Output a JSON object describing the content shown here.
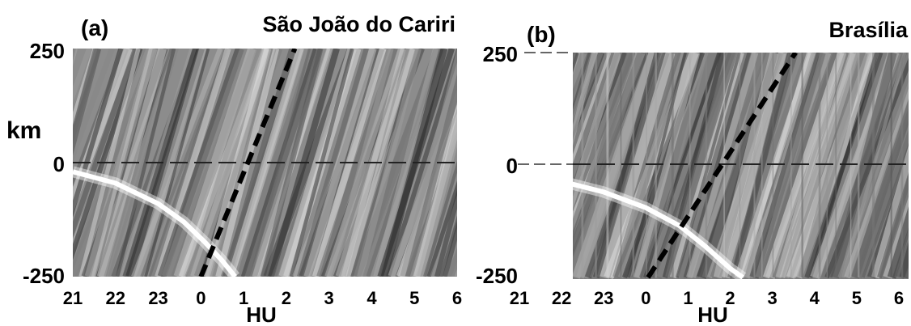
{
  "figure": {
    "background": "#ffffff",
    "axis_unit_label": "km",
    "panel_colors": {
      "keogram_light": "#e6e6e6",
      "keogram_dark": "#2a2a2a",
      "white_trace": "#ffffff",
      "dashed_line": "#000000"
    }
  },
  "chart_data": [
    {
      "type": "heatmap",
      "panel_label": "(a)",
      "title": "São João do Cariri",
      "xlabel": "HU",
      "ylabel": "km",
      "x_ticks": [
        "21",
        "22",
        "23",
        "0",
        "1",
        "2",
        "3",
        "4",
        "5",
        "6"
      ],
      "y_ticks": [
        "250",
        "0",
        "-250"
      ],
      "xlim": [
        21,
        30.2
      ],
      "ylim": [
        -250,
        250
      ],
      "grayscale": true,
      "data_start": 21,
      "reference_line": {
        "y": 0,
        "style": "dashed"
      },
      "bright_trace": {
        "description": "white curve",
        "points": [
          [
            21.0,
            -20
          ],
          [
            22.0,
            -45
          ],
          [
            23.0,
            -90
          ],
          [
            23.6,
            -130
          ],
          [
            24.1,
            -175
          ],
          [
            24.5,
            -215
          ],
          [
            24.8,
            -250
          ]
        ]
      },
      "phase_line": {
        "style": "thick dashed",
        "points": [
          [
            24.0,
            -250
          ],
          [
            26.2,
            250
          ]
        ]
      }
    },
    {
      "type": "heatmap",
      "panel_label": "(b)",
      "title": "Brasília",
      "xlabel": "HU",
      "ylabel": "",
      "x_ticks": [
        "21",
        "22",
        "23",
        "0",
        "1",
        "2",
        "3",
        "4",
        "5",
        "6"
      ],
      "y_ticks": [
        "250",
        "0",
        "-250"
      ],
      "xlim": [
        21,
        30.2
      ],
      "ylim": [
        -250,
        250
      ],
      "grayscale": true,
      "data_start": 22.15,
      "reference_line": {
        "y": 0,
        "style": "dashed"
      },
      "bright_trace": {
        "description": "white curve",
        "points": [
          [
            22.15,
            -40
          ],
          [
            23.0,
            -60
          ],
          [
            24.0,
            -95
          ],
          [
            24.8,
            -135
          ],
          [
            25.4,
            -180
          ],
          [
            26.0,
            -230
          ],
          [
            26.3,
            -250
          ]
        ]
      },
      "phase_line": {
        "style": "thick dashed",
        "points": [
          [
            24.05,
            -250
          ],
          [
            27.55,
            250
          ]
        ]
      }
    }
  ]
}
